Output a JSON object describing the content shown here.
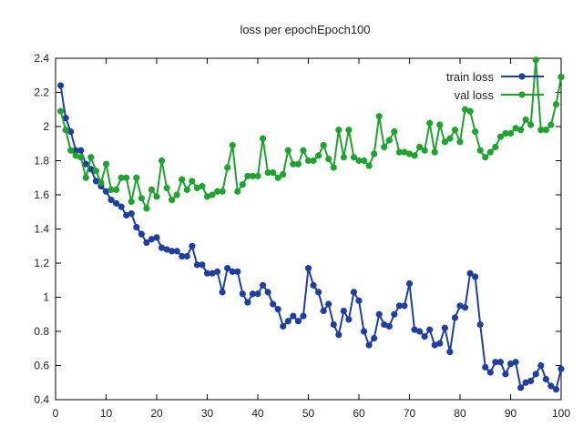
{
  "chart_data": {
    "type": "line",
    "title": "loss per epochEpoch100",
    "xlabel": "",
    "ylabel": "",
    "xlim": [
      0,
      100
    ],
    "ylim": [
      0.4,
      2.4
    ],
    "xticks": [
      "0",
      "10",
      "20",
      "30",
      "40",
      "50",
      "60",
      "70",
      "80",
      "90",
      "100"
    ],
    "yticks": [
      "0.4",
      "0.6",
      "0.8",
      "1",
      "1.2",
      "1.4",
      "1.6",
      "1.8",
      "2",
      "2.2",
      "2.4"
    ],
    "grid": false,
    "legend_position": "top-right",
    "x": [
      1,
      2,
      3,
      4,
      5,
      6,
      7,
      8,
      9,
      10,
      11,
      12,
      13,
      14,
      15,
      16,
      17,
      18,
      19,
      20,
      21,
      22,
      23,
      24,
      25,
      26,
      27,
      28,
      29,
      30,
      31,
      32,
      33,
      34,
      35,
      36,
      37,
      38,
      39,
      40,
      41,
      42,
      43,
      44,
      45,
      46,
      47,
      48,
      49,
      50,
      51,
      52,
      53,
      54,
      55,
      56,
      57,
      58,
      59,
      60,
      61,
      62,
      63,
      64,
      65,
      66,
      67,
      68,
      69,
      70,
      71,
      72,
      73,
      74,
      75,
      76,
      77,
      78,
      79,
      80,
      81,
      82,
      83,
      84,
      85,
      86,
      87,
      88,
      89,
      90,
      91,
      92,
      93,
      94,
      95,
      96,
      97,
      98,
      99,
      100
    ],
    "series": [
      {
        "name": "train loss",
        "color": "#1f3f9f",
        "values": [
          2.24,
          2.05,
          1.97,
          1.86,
          1.86,
          1.78,
          1.75,
          1.68,
          1.65,
          1.62,
          1.57,
          1.55,
          1.53,
          1.48,
          1.49,
          1.41,
          1.37,
          1.32,
          1.34,
          1.35,
          1.29,
          1.28,
          1.27,
          1.27,
          1.24,
          1.24,
          1.3,
          1.19,
          1.19,
          1.14,
          1.14,
          1.15,
          1.03,
          1.17,
          1.15,
          1.15,
          1.02,
          0.97,
          1.02,
          1.02,
          1.07,
          1.03,
          0.96,
          0.93,
          0.83,
          0.86,
          0.89,
          0.86,
          0.89,
          1.17,
          1.07,
          1.03,
          0.92,
          0.96,
          0.84,
          0.78,
          0.92,
          0.87,
          1.03,
          0.98,
          0.8,
          0.72,
          0.76,
          0.9,
          0.84,
          0.83,
          0.9,
          0.95,
          0.95,
          1.08,
          0.81,
          0.8,
          0.77,
          0.81,
          0.72,
          0.73,
          0.82,
          0.68,
          0.88,
          0.95,
          0.94,
          1.14,
          1.12,
          0.84,
          0.59,
          0.56,
          0.62,
          0.62,
          0.55,
          0.61,
          0.62,
          0.47,
          0.5,
          0.51,
          0.55,
          0.6,
          0.52,
          0.48,
          0.46,
          0.58
        ]
      },
      {
        "name": "val loss",
        "color": "#1fa22f",
        "values": [
          2.09,
          1.98,
          1.86,
          1.83,
          1.82,
          1.7,
          1.82,
          1.74,
          1.67,
          1.78,
          1.63,
          1.63,
          1.7,
          1.7,
          1.56,
          1.7,
          1.58,
          1.52,
          1.63,
          1.59,
          1.8,
          1.64,
          1.57,
          1.6,
          1.69,
          1.63,
          1.68,
          1.64,
          1.65,
          1.59,
          1.6,
          1.62,
          1.62,
          1.76,
          1.89,
          1.62,
          1.66,
          1.71,
          1.71,
          1.71,
          1.93,
          1.73,
          1.73,
          1.7,
          1.72,
          1.86,
          1.78,
          1.78,
          1.86,
          1.8,
          1.8,
          1.83,
          1.89,
          1.81,
          1.76,
          1.98,
          1.82,
          1.98,
          1.82,
          1.8,
          1.8,
          1.77,
          1.84,
          2.06,
          1.88,
          1.92,
          1.97,
          1.85,
          1.85,
          1.84,
          1.83,
          1.88,
          1.86,
          2.02,
          1.85,
          2.01,
          1.91,
          1.93,
          1.98,
          1.91,
          2.1,
          2.09,
          1.97,
          1.86,
          1.82,
          1.85,
          1.88,
          1.94,
          1.96,
          1.96,
          1.99,
          1.98,
          2.04,
          2.01,
          2.39,
          1.98,
          1.98,
          2.01,
          2.13,
          2.29
        ]
      }
    ]
  }
}
